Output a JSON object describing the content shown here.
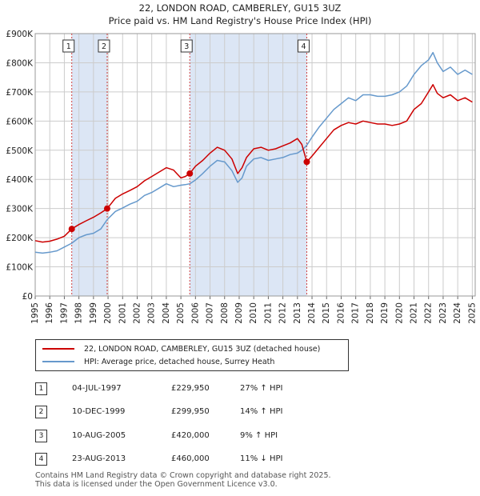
{
  "title_line1": "22, LONDON ROAD, CAMBERLEY, GU15 3UZ",
  "title_line2": "Price paid vs. HM Land Registry's House Price Index (HPI)",
  "colors": {
    "property": "#cc0000",
    "hpi": "#6699cc",
    "shade": "#dce6f5",
    "grid": "#cccccc"
  },
  "chart_data": {
    "type": "line",
    "ylim": [
      0,
      900000
    ],
    "xlim": [
      1995,
      2025.2
    ],
    "y_ticks": [
      {
        "value": 0,
        "label": "£0"
      },
      {
        "value": 100000,
        "label": "£100K"
      },
      {
        "value": 200000,
        "label": "£200K"
      },
      {
        "value": 300000,
        "label": "£300K"
      },
      {
        "value": 400000,
        "label": "£400K"
      },
      {
        "value": 500000,
        "label": "£500K"
      },
      {
        "value": 600000,
        "label": "£600K"
      },
      {
        "value": 700000,
        "label": "£700K"
      },
      {
        "value": 800000,
        "label": "£800K"
      },
      {
        "value": 900000,
        "label": "£900K"
      }
    ],
    "x_ticks": [
      "1995",
      "1996",
      "1997",
      "1998",
      "1999",
      "2000",
      "2001",
      "2002",
      "2003",
      "2004",
      "2005",
      "2006",
      "2007",
      "2008",
      "2009",
      "2010",
      "2011",
      "2012",
      "2013",
      "2014",
      "2015",
      "2016",
      "2017",
      "2018",
      "2019",
      "2020",
      "2021",
      "2022",
      "2023",
      "2024",
      "2025"
    ],
    "shaded_ranges": [
      [
        1997.51,
        1999.94
      ],
      [
        2005.61,
        2013.64
      ]
    ],
    "series": [
      {
        "name": "22, LONDON ROAD, CAMBERLEY, GU15 3UZ (detached house)",
        "color": "#cc0000",
        "x": [
          1995,
          1995.5,
          1996,
          1996.5,
          1997,
          1997.51,
          1998,
          1998.5,
          1999,
          1999.5,
          1999.94,
          2000.5,
          2001,
          2001.5,
          2002,
          2002.5,
          2003,
          2003.5,
          2004,
          2004.5,
          2005,
          2005.3,
          2005.61,
          2006,
          2006.5,
          2007,
          2007.5,
          2008,
          2008.5,
          2008.9,
          2009.2,
          2009.5,
          2010,
          2010.5,
          2011,
          2011.5,
          2012,
          2012.5,
          2013,
          2013.3,
          2013.64,
          2014,
          2014.5,
          2015,
          2015.5,
          2016,
          2016.5,
          2017,
          2017.5,
          2018,
          2018.5,
          2019,
          2019.5,
          2020,
          2020.5,
          2021,
          2021.5,
          2022,
          2022.3,
          2022.6,
          2023,
          2023.5,
          2024,
          2024.5,
          2025
        ],
        "y": [
          190000,
          185000,
          188000,
          195000,
          205000,
          229950,
          245000,
          258000,
          270000,
          285000,
          299950,
          335000,
          350000,
          362000,
          375000,
          395000,
          410000,
          425000,
          440000,
          432000,
          405000,
          410000,
          420000,
          445000,
          465000,
          490000,
          510000,
          500000,
          470000,
          420000,
          440000,
          475000,
          505000,
          510000,
          500000,
          505000,
          515000,
          525000,
          540000,
          520000,
          460000,
          480000,
          510000,
          540000,
          570000,
          585000,
          595000,
          590000,
          600000,
          595000,
          590000,
          590000,
          585000,
          590000,
          600000,
          640000,
          660000,
          700000,
          725000,
          695000,
          680000,
          690000,
          670000,
          680000,
          665000
        ]
      },
      {
        "name": "HPI: Average price, detached house, Surrey Heath",
        "color": "#6699cc",
        "x": [
          1995,
          1995.5,
          1996,
          1996.5,
          1997,
          1997.51,
          1998,
          1998.5,
          1999,
          1999.5,
          1999.94,
          2000.5,
          2001,
          2001.5,
          2002,
          2002.5,
          2003,
          2003.5,
          2004,
          2004.5,
          2005,
          2005.3,
          2005.61,
          2006,
          2006.5,
          2007,
          2007.5,
          2008,
          2008.5,
          2008.9,
          2009.2,
          2009.5,
          2010,
          2010.5,
          2011,
          2011.5,
          2012,
          2012.5,
          2013,
          2013.3,
          2013.64,
          2014,
          2014.5,
          2015,
          2015.5,
          2016,
          2016.5,
          2017,
          2017.5,
          2018,
          2018.5,
          2019,
          2019.5,
          2020,
          2020.5,
          2021,
          2021.5,
          2022,
          2022.3,
          2022.6,
          2023,
          2023.5,
          2024,
          2024.5,
          2025
        ],
        "y": [
          150000,
          147000,
          150000,
          155000,
          168000,
          181000,
          200000,
          210000,
          215000,
          230000,
          262000,
          290000,
          302000,
          315000,
          325000,
          345000,
          355000,
          370000,
          385000,
          375000,
          380000,
          382000,
          385000,
          398000,
          420000,
          445000,
          465000,
          460000,
          430000,
          390000,
          405000,
          445000,
          470000,
          475000,
          465000,
          470000,
          475000,
          485000,
          490000,
          500000,
          517000,
          545000,
          580000,
          610000,
          640000,
          660000,
          680000,
          670000,
          690000,
          690000,
          685000,
          685000,
          690000,
          700000,
          720000,
          760000,
          790000,
          810000,
          835000,
          800000,
          770000,
          785000,
          760000,
          775000,
          760000
        ]
      }
    ],
    "transactions": [
      {
        "num": "1",
        "x": 1997.51,
        "y": 229950,
        "date": "04-JUL-1997",
        "price": "£229,950",
        "hpi": "27% ↑ HPI"
      },
      {
        "num": "2",
        "x": 1999.94,
        "y": 299950,
        "date": "10-DEC-1999",
        "price": "£299,950",
        "hpi": "14% ↑ HPI"
      },
      {
        "num": "3",
        "x": 2005.61,
        "y": 420000,
        "date": "10-AUG-2005",
        "price": "£420,000",
        "hpi": "9% ↑ HPI"
      },
      {
        "num": "4",
        "x": 2013.64,
        "y": 460000,
        "date": "23-AUG-2013",
        "price": "£460,000",
        "hpi": "11% ↓ HPI"
      }
    ]
  },
  "legend": {
    "property_label": "22, LONDON ROAD, CAMBERLEY, GU15 3UZ (detached house)",
    "hpi_label": "HPI: Average price, detached house, Surrey Heath"
  },
  "footer": {
    "line1": "Contains HM Land Registry data © Crown copyright and database right 2025.",
    "line2": "This data is licensed under the Open Government Licence v3.0."
  }
}
